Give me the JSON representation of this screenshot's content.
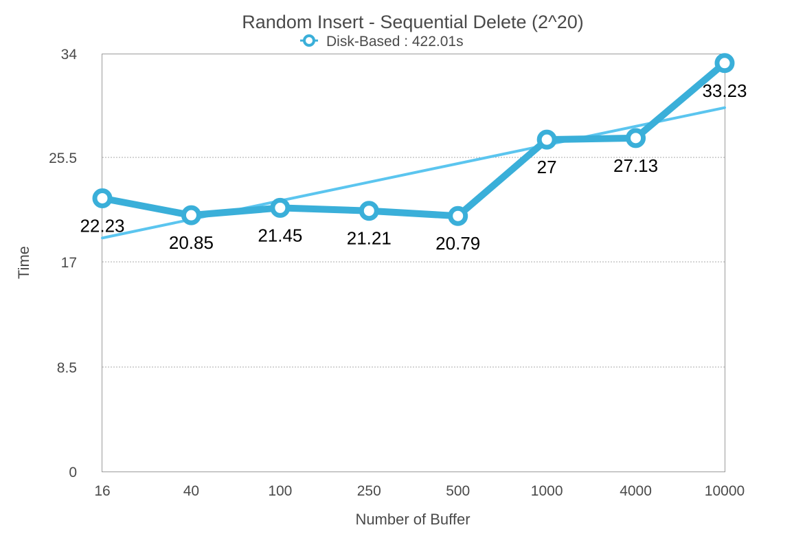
{
  "chart_data": {
    "type": "line",
    "title": "Random Insert - Sequential Delete (2^20)",
    "xlabel": "Number of Buffer",
    "ylabel": "Time",
    "categories": [
      "16",
      "40",
      "100",
      "250",
      "500",
      "1000",
      "4000",
      "10000"
    ],
    "series": [
      {
        "name": "Disk-Based : 422.01s",
        "values": [
          22.23,
          20.85,
          21.45,
          21.21,
          20.79,
          27,
          27.13,
          33.23
        ],
        "labels": [
          "22.23",
          "20.85",
          "21.45",
          "21.21",
          "20.79",
          "27",
          "27.13",
          "33.23"
        ],
        "color": "#3aafd9"
      }
    ],
    "trendline": {
      "start": 19,
      "end": 29.6,
      "color": "#5bc5ef"
    },
    "yticks": [
      "0",
      "8.5",
      "17",
      "25.5",
      "34"
    ],
    "ylim": [
      0,
      34
    ],
    "grid": true,
    "legend_position": "top-center"
  }
}
